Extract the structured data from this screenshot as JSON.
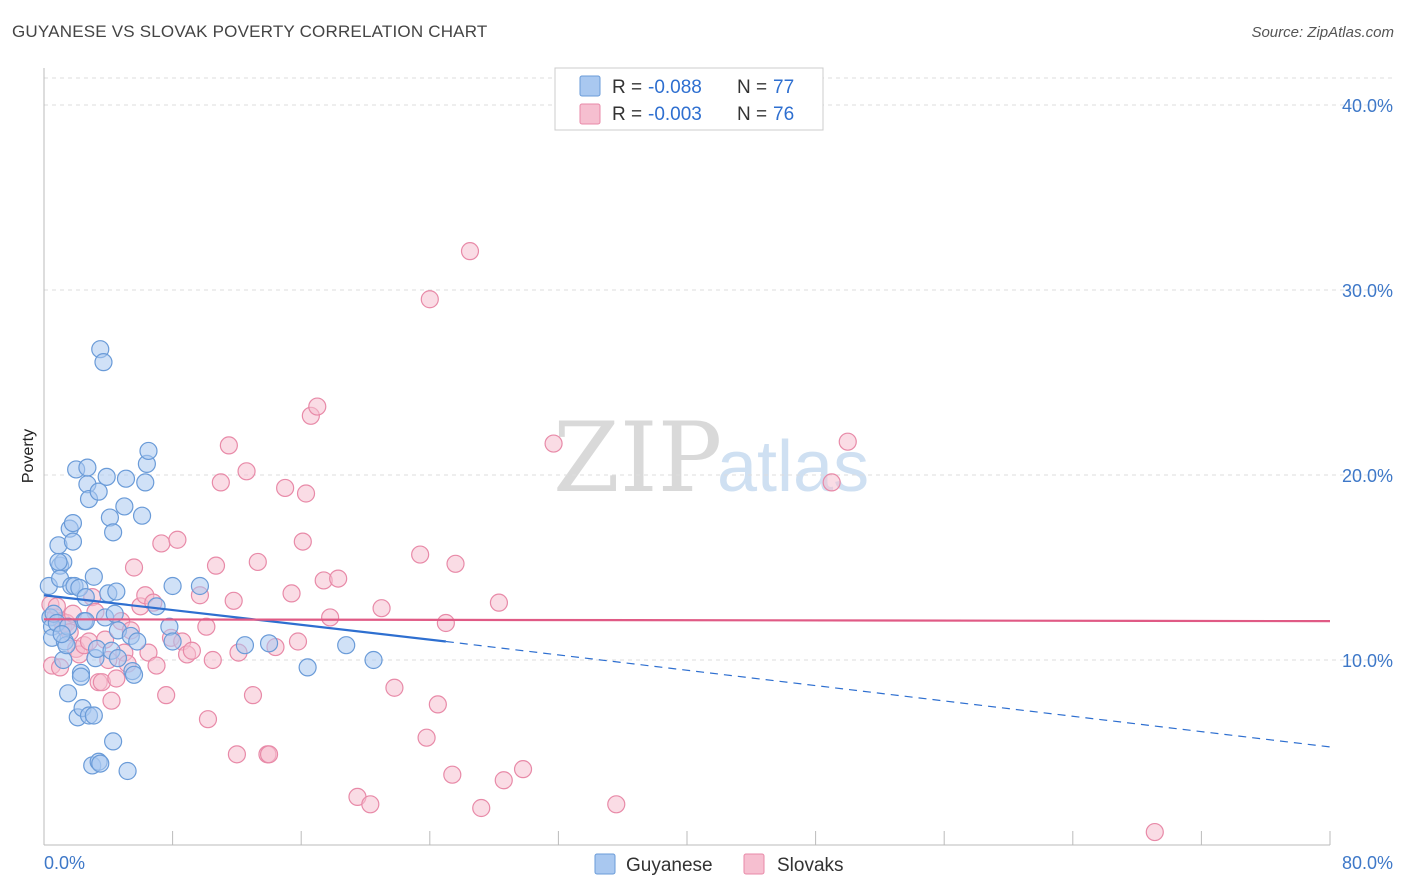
{
  "header": {
    "title": "GUYANESE VS SLOVAK POVERTY CORRELATION CHART",
    "source": "Source: ZipAtlas.com"
  },
  "watermark": {
    "zip": "ZIP",
    "atlas": "atlas"
  },
  "colors": {
    "blue_fill": "#a9c8f0",
    "blue_stroke": "#6a9bd8",
    "blue_line": "#2e6fd0",
    "pink_fill": "#f6bfd0",
    "pink_stroke": "#e88aa8",
    "pink_line": "#e05a85",
    "grid": "#dddddd",
    "tick_text": "#3e78c8"
  },
  "legend": {
    "rows": [
      {
        "r_label": "R = ",
        "r_value": "-0.088",
        "n_label": "N = ",
        "n_value": "77"
      },
      {
        "r_label": "R = ",
        "r_value": "-0.003",
        "n_label": "N = ",
        "n_value": "76"
      }
    ]
  },
  "chart_data": {
    "type": "scatter",
    "title": "GUYANESE VS SLOVAK POVERTY CORRELATION CHART",
    "xlabel": "",
    "ylabel": "Poverty",
    "xlim": [
      0,
      80
    ],
    "ylim": [
      0,
      42
    ],
    "x_tick_labels": [
      "0.0%",
      "80.0%"
    ],
    "y_ticks": [
      10,
      20,
      30,
      40
    ],
    "y_tick_labels": [
      "10.0%",
      "20.0%",
      "30.0%",
      "40.0%"
    ],
    "grid": true,
    "series": [
      {
        "name": "Guyanese",
        "r": -0.088,
        "n": 77,
        "trend": {
          "x0": 0,
          "y0": 13.5,
          "x1": 25,
          "y1": 11.0,
          "x_dash_end": 80,
          "y_dash_end": 5.3
        },
        "points": [
          [
            0.3,
            14.0
          ],
          [
            0.4,
            12.3
          ],
          [
            0.5,
            11.8
          ],
          [
            0.5,
            11.2
          ],
          [
            0.6,
            12.5
          ],
          [
            0.8,
            12.0
          ],
          [
            0.9,
            16.2
          ],
          [
            1.0,
            15.1
          ],
          [
            1.0,
            14.4
          ],
          [
            1.2,
            15.3
          ],
          [
            1.2,
            10.0
          ],
          [
            1.3,
            11.0
          ],
          [
            1.4,
            10.8
          ],
          [
            1.5,
            11.8
          ],
          [
            1.5,
            8.2
          ],
          [
            1.6,
            17.1
          ],
          [
            1.7,
            14.0
          ],
          [
            1.8,
            17.4
          ],
          [
            1.8,
            16.4
          ],
          [
            1.9,
            14.0
          ],
          [
            2.0,
            20.3
          ],
          [
            2.1,
            6.9
          ],
          [
            2.2,
            13.9
          ],
          [
            2.3,
            9.3
          ],
          [
            2.3,
            9.1
          ],
          [
            2.4,
            7.4
          ],
          [
            2.5,
            12.1
          ],
          [
            2.6,
            13.4
          ],
          [
            2.7,
            19.5
          ],
          [
            2.7,
            20.4
          ],
          [
            2.8,
            18.7
          ],
          [
            2.8,
            7.0
          ],
          [
            3.0,
            4.3
          ],
          [
            3.1,
            7.0
          ],
          [
            3.1,
            14.5
          ],
          [
            3.2,
            10.1
          ],
          [
            3.3,
            10.6
          ],
          [
            3.4,
            19.1
          ],
          [
            3.4,
            4.5
          ],
          [
            3.5,
            4.4
          ],
          [
            3.5,
            26.8
          ],
          [
            3.7,
            26.1
          ],
          [
            3.8,
            12.3
          ],
          [
            3.9,
            19.9
          ],
          [
            4.0,
            13.6
          ],
          [
            4.1,
            17.7
          ],
          [
            4.2,
            10.5
          ],
          [
            4.3,
            5.6
          ],
          [
            4.3,
            16.9
          ],
          [
            4.4,
            12.5
          ],
          [
            4.5,
            13.7
          ],
          [
            4.6,
            11.6
          ],
          [
            4.6,
            10.1
          ],
          [
            5.0,
            18.3
          ],
          [
            5.1,
            19.8
          ],
          [
            5.2,
            4.0
          ],
          [
            5.4,
            11.3
          ],
          [
            5.5,
            9.4
          ],
          [
            5.6,
            9.2
          ],
          [
            5.8,
            11.0
          ],
          [
            6.1,
            17.8
          ],
          [
            6.3,
            19.6
          ],
          [
            6.4,
            20.6
          ],
          [
            6.5,
            21.3
          ],
          [
            7.0,
            12.9
          ],
          [
            7.8,
            11.8
          ],
          [
            8.0,
            14.0
          ],
          [
            8.0,
            11.0
          ],
          [
            9.7,
            14.0
          ],
          [
            12.5,
            10.8
          ],
          [
            14.0,
            10.9
          ],
          [
            16.4,
            9.6
          ],
          [
            18.8,
            10.8
          ],
          [
            20.5,
            10.0
          ],
          [
            0.9,
            15.3
          ],
          [
            2.6,
            12.1
          ],
          [
            1.1,
            11.4
          ]
        ]
      },
      {
        "name": "Slovaks",
        "r": -0.003,
        "n": 76,
        "trend": {
          "x0": 0,
          "y0": 12.2,
          "x1": 80,
          "y1": 12.1
        },
        "points": [
          [
            0.4,
            13.0
          ],
          [
            0.5,
            9.7
          ],
          [
            0.7,
            12.3
          ],
          [
            0.8,
            12.9
          ],
          [
            1.0,
            9.6
          ],
          [
            1.1,
            12.1
          ],
          [
            1.2,
            11.8
          ],
          [
            1.4,
            12.0
          ],
          [
            1.6,
            11.5
          ],
          [
            1.8,
            12.5
          ],
          [
            2.0,
            10.6
          ],
          [
            2.2,
            10.3
          ],
          [
            2.5,
            10.8
          ],
          [
            2.8,
            11.0
          ],
          [
            3.0,
            13.4
          ],
          [
            3.2,
            12.6
          ],
          [
            3.4,
            8.8
          ],
          [
            3.6,
            8.8
          ],
          [
            3.8,
            11.1
          ],
          [
            4.0,
            10.0
          ],
          [
            4.2,
            7.8
          ],
          [
            4.5,
            9.0
          ],
          [
            4.8,
            12.1
          ],
          [
            5.0,
            10.4
          ],
          [
            5.2,
            9.8
          ],
          [
            5.4,
            11.6
          ],
          [
            5.6,
            15.0
          ],
          [
            6.0,
            12.9
          ],
          [
            6.3,
            13.5
          ],
          [
            6.5,
            10.4
          ],
          [
            6.8,
            13.1
          ],
          [
            7.0,
            9.7
          ],
          [
            7.3,
            16.3
          ],
          [
            7.6,
            8.1
          ],
          [
            7.9,
            11.2
          ],
          [
            8.3,
            16.5
          ],
          [
            8.6,
            11.0
          ],
          [
            8.9,
            10.3
          ],
          [
            9.2,
            10.5
          ],
          [
            9.7,
            13.5
          ],
          [
            10.1,
            11.8
          ],
          [
            10.2,
            6.8
          ],
          [
            10.5,
            10.0
          ],
          [
            10.7,
            15.1
          ],
          [
            11.0,
            19.6
          ],
          [
            11.5,
            21.6
          ],
          [
            11.8,
            13.2
          ],
          [
            12.1,
            10.4
          ],
          [
            12.6,
            20.2
          ],
          [
            13.0,
            8.1
          ],
          [
            13.3,
            15.3
          ],
          [
            13.9,
            4.9
          ],
          [
            14.4,
            10.7
          ],
          [
            15.0,
            19.3
          ],
          [
            15.4,
            13.6
          ],
          [
            15.8,
            11.0
          ],
          [
            16.1,
            16.4
          ],
          [
            16.3,
            19.0
          ],
          [
            16.6,
            23.2
          ],
          [
            17.0,
            23.7
          ],
          [
            17.4,
            14.3
          ],
          [
            17.8,
            12.3
          ],
          [
            18.3,
            14.4
          ],
          [
            19.5,
            2.6
          ],
          [
            20.3,
            2.2
          ],
          [
            21.0,
            12.8
          ],
          [
            21.8,
            8.5
          ],
          [
            23.4,
            15.7
          ],
          [
            24.0,
            29.5
          ],
          [
            23.8,
            5.8
          ],
          [
            25.0,
            12.0
          ],
          [
            25.6,
            15.2
          ],
          [
            26.5,
            32.1
          ],
          [
            28.3,
            13.1
          ],
          [
            50.0,
            21.8
          ],
          [
            69.1,
            0.7
          ]
        ]
      }
    ],
    "extra_points_slovaks": [
      [
        12.0,
        4.9
      ],
      [
        14.0,
        4.9
      ],
      [
        25.4,
        3.8
      ],
      [
        27.2,
        2.0
      ],
      [
        28.6,
        3.5
      ],
      [
        29.8,
        4.1
      ],
      [
        31.7,
        21.7
      ],
      [
        35.6,
        2.2
      ],
      [
        49.0,
        19.6
      ],
      [
        24.5,
        7.6
      ]
    ]
  },
  "bottom_legend": {
    "items": [
      {
        "label": "Guyanese"
      },
      {
        "label": "Slovaks"
      }
    ]
  }
}
